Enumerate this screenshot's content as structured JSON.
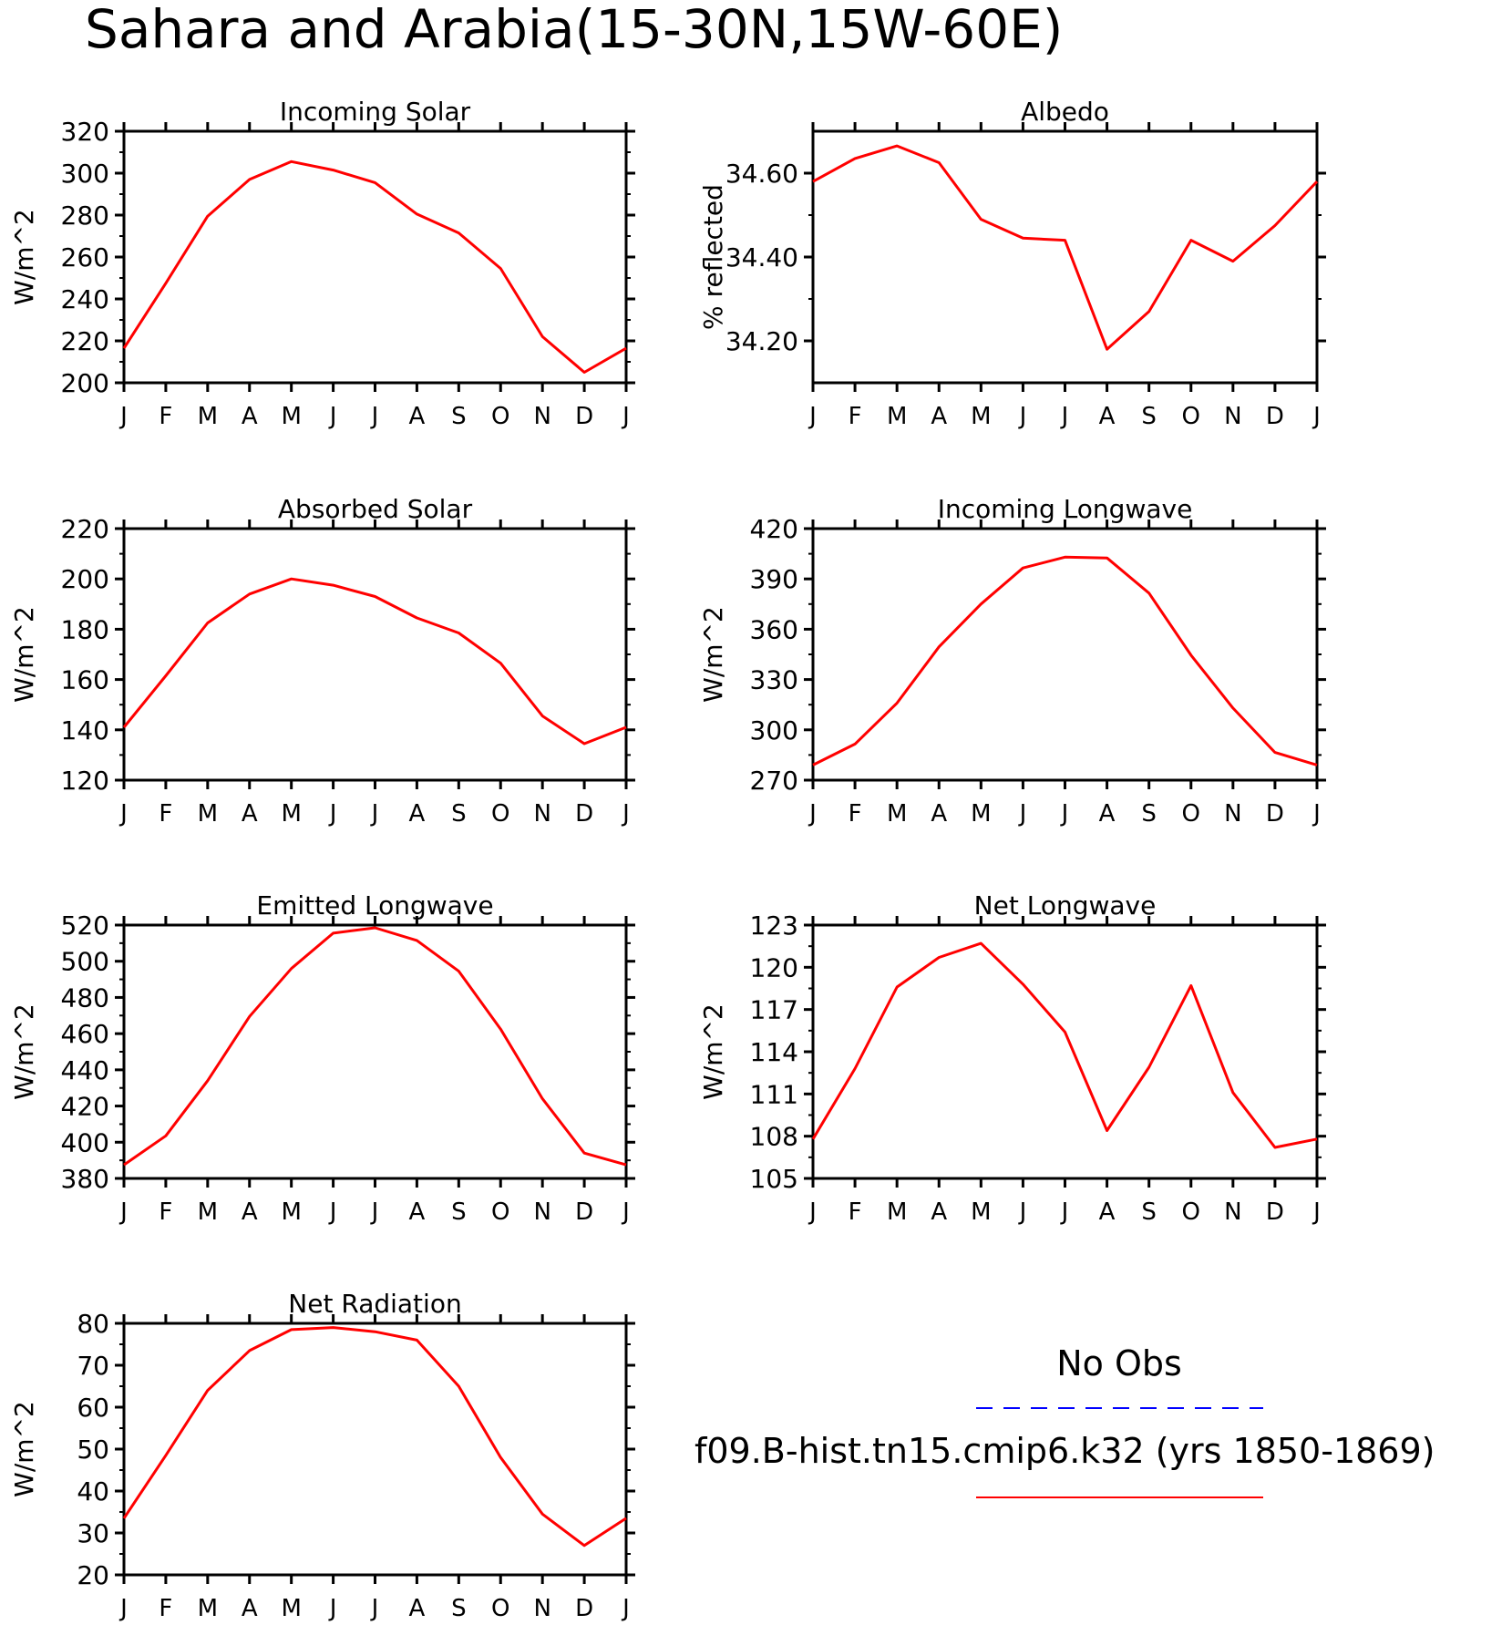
{
  "title": "Sahara and Arabia(15-30N,15W-60E)",
  "months": [
    "J",
    "F",
    "M",
    "A",
    "M",
    "J",
    "J",
    "A",
    "S",
    "O",
    "N",
    "D",
    "J"
  ],
  "chart_data": [
    {
      "type": "line",
      "title": "Incoming Solar",
      "ylabel": "W/m^2",
      "ylim": [
        200,
        320
      ],
      "yticks": [
        200,
        220,
        240,
        260,
        280,
        300,
        320
      ],
      "ytick_labels": [
        "200",
        "220",
        "240",
        "260",
        "280",
        "300",
        "320"
      ],
      "series": [
        {
          "values": [
            216.5,
            247.5,
            279.5,
            297,
            305.5,
            301.5,
            295.5,
            280.5,
            271.5,
            254.5,
            222,
            205,
            216.5
          ]
        }
      ]
    },
    {
      "type": "line",
      "title": "Albedo",
      "ylabel": "% reflected",
      "ylim": [
        34.1,
        34.7
      ],
      "yticks": [
        34.2,
        34.4,
        34.6
      ],
      "ytick_labels": [
        "34.20",
        "34.40",
        "34.60"
      ],
      "series": [
        {
          "values": [
            34.58,
            34.635,
            34.665,
            34.625,
            34.49,
            34.445,
            34.44,
            34.18,
            34.27,
            34.44,
            34.39,
            34.475,
            34.58
          ]
        }
      ]
    },
    {
      "type": "line",
      "title": "Absorbed Solar",
      "ylabel": "W/m^2",
      "ylim": [
        120,
        220
      ],
      "yticks": [
        120,
        140,
        160,
        180,
        200,
        220
      ],
      "ytick_labels": [
        "120",
        "140",
        "160",
        "180",
        "200",
        "220"
      ],
      "series": [
        {
          "values": [
            141,
            161.5,
            182.5,
            194,
            200,
            197.5,
            193,
            184.5,
            178.5,
            166.5,
            145.5,
            134.5,
            141
          ]
        }
      ]
    },
    {
      "type": "line",
      "title": "Incoming Longwave",
      "ylabel": "W/m^2",
      "ylim": [
        270,
        420
      ],
      "yticks": [
        270,
        300,
        330,
        360,
        390,
        420
      ],
      "ytick_labels": [
        "270",
        "300",
        "330",
        "360",
        "390",
        "420"
      ],
      "series": [
        {
          "values": [
            279,
            291.5,
            316,
            349.5,
            375,
            396.5,
            403,
            402.5,
            381.5,
            344.5,
            313,
            286.5,
            279
          ]
        }
      ]
    },
    {
      "type": "line",
      "title": "Emitted Longwave",
      "ylabel": "W/m^2",
      "ylim": [
        380,
        520
      ],
      "yticks": [
        380,
        400,
        420,
        440,
        460,
        480,
        500,
        520
      ],
      "ytick_labels": [
        "380",
        "400",
        "420",
        "440",
        "460",
        "480",
        "500",
        "520"
      ],
      "series": [
        {
          "values": [
            387.5,
            403.5,
            434,
            469.5,
            496,
            515.5,
            518.5,
            511.5,
            494.5,
            462.5,
            424,
            394,
            387.5
          ]
        }
      ]
    },
    {
      "type": "line",
      "title": "Net Longwave",
      "ylabel": "W/m^2",
      "ylim": [
        105,
        123
      ],
      "yticks": [
        105,
        108,
        111,
        114,
        117,
        120,
        123
      ],
      "ytick_labels": [
        "105",
        "108",
        "111",
        "114",
        "117",
        "120",
        "123"
      ],
      "series": [
        {
          "values": [
            107.8,
            112.8,
            118.6,
            120.7,
            121.7,
            118.8,
            115.4,
            108.4,
            112.9,
            118.7,
            111.1,
            107.2,
            107.8
          ]
        }
      ]
    },
    {
      "type": "line",
      "title": "Net Radiation",
      "ylabel": "W/m^2",
      "ylim": [
        20,
        80
      ],
      "yticks": [
        20,
        30,
        40,
        50,
        60,
        70,
        80
      ],
      "ytick_labels": [
        "20",
        "30",
        "40",
        "50",
        "60",
        "70",
        "80"
      ],
      "series": [
        {
          "values": [
            33.5,
            48.5,
            64,
            73.5,
            78.5,
            79,
            78,
            76,
            65,
            48,
            34.5,
            27,
            33.5
          ]
        }
      ]
    }
  ],
  "legend": {
    "obs_label": "No Obs",
    "model_label": "f09.B-hist.tn15.cmip6.k32 (yrs 1850-1869)",
    "obs_color": "#0000ff",
    "model_color": "#ff0000"
  }
}
